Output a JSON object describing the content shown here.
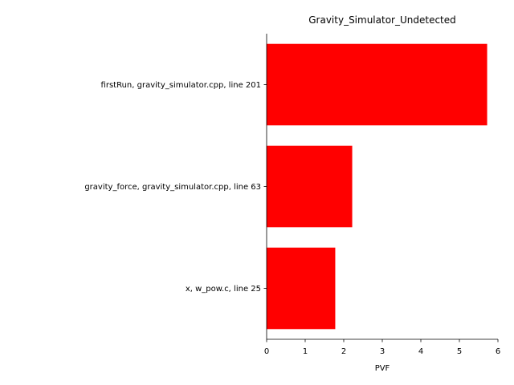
{
  "chart_data": {
    "type": "bar",
    "orientation": "horizontal",
    "title": "Gravity_Simulator_Undetected",
    "xlabel": "PVF",
    "ylabel": "",
    "categories": [
      "firstRun, gravity_simulator.cpp, line 201",
      "gravity_force, gravity_simulator.cpp, line 63",
      "x, w_pow.c, line 25"
    ],
    "values": [
      5.72,
      2.22,
      1.78
    ],
    "xlim": [
      0,
      6
    ],
    "xticks": [
      "0",
      "1",
      "2",
      "3",
      "4",
      "5",
      "6"
    ],
    "grid": false,
    "bar_color": "#ff0000"
  }
}
